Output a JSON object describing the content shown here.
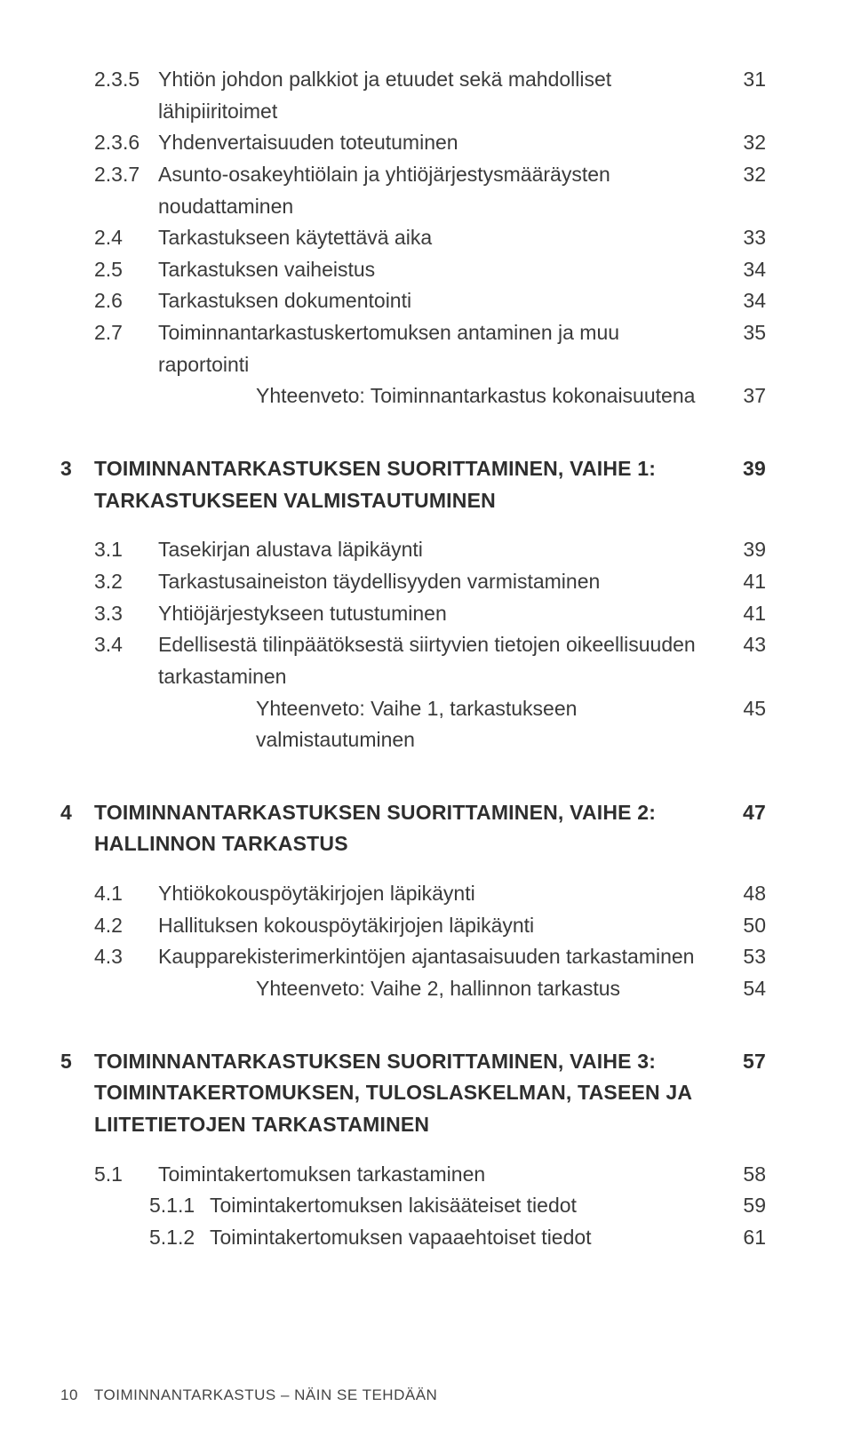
{
  "entries": [
    {
      "kind": "row",
      "indent": "i2",
      "num": "2.3.5",
      "title": "Yhtiön johdon palkkiot ja etuudet sekä mahdolliset lähipiiritoimet",
      "page": "31"
    },
    {
      "kind": "row",
      "indent": "i2",
      "num": "2.3.6",
      "title": "Yhdenvertaisuuden toteutuminen",
      "page": "32"
    },
    {
      "kind": "row",
      "indent": "i2",
      "num": "2.3.7",
      "title": "Asunto-osakeyhtiölain ja yhtiöjärjestys­määräysten noudattaminen",
      "page": "32"
    },
    {
      "kind": "row",
      "indent": "i1",
      "num": "2.4",
      "title": "Tarkastukseen käytettävä aika",
      "page": "33"
    },
    {
      "kind": "row",
      "indent": "i1",
      "num": "2.5",
      "title": "Tarkastuksen vaiheistus",
      "page": "34"
    },
    {
      "kind": "row",
      "indent": "i1",
      "num": "2.6",
      "title": "Tarkastuksen dokumentointi",
      "page": "34"
    },
    {
      "kind": "row",
      "indent": "i1",
      "num": "2.7",
      "title": "Toiminnantarkastuskertomuksen antaminen ja muu raportointi",
      "page": "35"
    },
    {
      "kind": "row",
      "indent": "i2nonum",
      "num": "",
      "title": "Yhteenveto: Toiminnantarkastus kokonaisuutena",
      "page": "37"
    },
    {
      "kind": "gap",
      "size": "lg"
    },
    {
      "kind": "row",
      "indent": "ch",
      "bold": true,
      "num": "3",
      "title": "TOIMINNANTARKASTUKSEN SUORITTAMINEN, VAIHE 1: TARKASTUKSEEN VALMISTAUTUMINEN",
      "page": "39"
    },
    {
      "kind": "gap",
      "size": "md"
    },
    {
      "kind": "row",
      "indent": "i1",
      "num": "3.1",
      "title": "Tasekirjan alustava läpikäynti",
      "page": "39"
    },
    {
      "kind": "row",
      "indent": "i1",
      "num": "3.2",
      "title": "Tarkastusaineiston täydellisyyden varmistaminen",
      "page": "41"
    },
    {
      "kind": "row",
      "indent": "i1",
      "num": "3.3",
      "title": "Yhtiöjärjestykseen tutustuminen",
      "page": "41"
    },
    {
      "kind": "row",
      "indent": "i1",
      "num": "3.4",
      "title": "Edellisestä tilinpäätöksestä siirtyvien tietojen oikeellisuuden tarkastaminen",
      "page": "43"
    },
    {
      "kind": "row",
      "indent": "i2nonum",
      "num": "",
      "title": "Yhteenveto: Vaihe 1, tarkastukseen valmistautuminen",
      "page": "45"
    },
    {
      "kind": "gap",
      "size": "lg"
    },
    {
      "kind": "row",
      "indent": "ch",
      "bold": true,
      "num": "4",
      "title": "TOIMINNANTARKASTUKSEN SUORITTAMINEN, VAIHE 2: HALLINNON TARKASTUS",
      "page": "47"
    },
    {
      "kind": "gap",
      "size": "md"
    },
    {
      "kind": "row",
      "indent": "i1",
      "num": "4.1",
      "title": "Yhtiökokouspöytäkirjojen läpikäynti",
      "page": "48"
    },
    {
      "kind": "row",
      "indent": "i1",
      "num": "4.2",
      "title": "Hallituksen kokouspöytäkirjojen läpikäynti",
      "page": "50"
    },
    {
      "kind": "row",
      "indent": "i1",
      "num": "4.3",
      "title": "Kaupparekisterimerkintöjen ajantasaisuuden tarkastaminen",
      "page": "53"
    },
    {
      "kind": "row",
      "indent": "i2nonum",
      "num": "",
      "title": "Yhteenveto: Vaihe 2, hallinnon tarkastus",
      "page": "54"
    },
    {
      "kind": "gap",
      "size": "lg"
    },
    {
      "kind": "row",
      "indent": "ch",
      "bold": true,
      "num": "5",
      "title": "TOIMINNANTARKASTUKSEN SUORITTAMINEN, VAIHE 3: TOIMINTAKERTOMUKSEN, TULOSLASKELMAN, TASEEN JA LIITETIETOJEN TARKASTAMINEN",
      "page": "57"
    },
    {
      "kind": "gap",
      "size": "md"
    },
    {
      "kind": "row",
      "indent": "i1",
      "num": "5.1",
      "title": "Toimintakertomuksen tarkastaminen",
      "page": "58"
    },
    {
      "kind": "row",
      "indent": "i3",
      "num": "5.1.1",
      "title": "Toimintakertomuksen lakisääteiset tiedot",
      "page": "59"
    },
    {
      "kind": "row",
      "indent": "i3",
      "num": "5.1.2",
      "title": "Toimintakertomuksen vapaaehtoiset tiedot",
      "page": "61"
    }
  ],
  "footer": {
    "page_number": "10",
    "running_title": "TOIMINNANTARKASTUS – NÄIN SE TEHDÄÄN"
  }
}
